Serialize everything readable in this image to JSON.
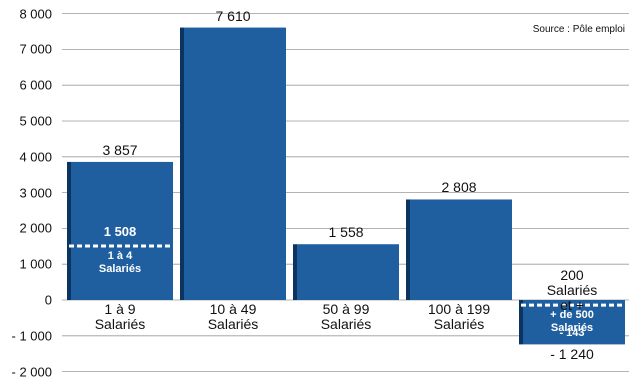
{
  "chart_data": {
    "type": "bar",
    "source": "Source : Pôle emploi",
    "categories": [
      "1 à 9\nSalariés",
      "10 à 49\nSalariés",
      "50 à 99\nSalariés",
      "100 à 199\nSalariés",
      "200\nSalariés et +"
    ],
    "values": [
      3857,
      7610,
      1558,
      2808,
      -1240
    ],
    "value_labels": [
      "3 857",
      "7 610",
      "1 558",
      "2 808",
      "- 1 240"
    ],
    "sub_categories": [
      "1 à 4\nSalariés",
      null,
      null,
      null,
      "+ de 500 Salariés"
    ],
    "sub_values": [
      1508,
      null,
      null,
      null,
      -143
    ],
    "sub_value_labels": [
      "1 508",
      null,
      null,
      null,
      "- 143"
    ],
    "color": "#1f5f9f",
    "ylim": [
      -2000,
      8000
    ],
    "yticks": [
      {
        "value": 8000,
        "label": "8 000"
      },
      {
        "value": 7000,
        "label": "7 000"
      },
      {
        "value": 6000,
        "label": "6 000"
      },
      {
        "value": 5000,
        "label": "5 000"
      },
      {
        "value": 4000,
        "label": "4 000"
      },
      {
        "value": 3000,
        "label": "3 000"
      },
      {
        "value": 2000,
        "label": "2 000"
      },
      {
        "value": 1000,
        "label": "1 000"
      },
      0,
      {
        "value": -1000,
        "label": "- 1 000"
      },
      {
        "value": -2000,
        "label": "- 2 000"
      }
    ],
    "grid": true
  }
}
